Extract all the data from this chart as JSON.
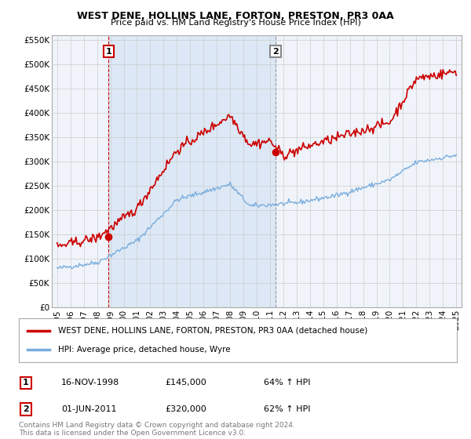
{
  "title": "WEST DENE, HOLLINS LANE, FORTON, PRESTON, PR3 0AA",
  "subtitle": "Price paid vs. HM Land Registry's House Price Index (HPI)",
  "property_label": "WEST DENE, HOLLINS LANE, FORTON, PRESTON, PR3 0AA (detached house)",
  "hpi_label": "HPI: Average price, detached house, Wyre",
  "property_color": "#cc0000",
  "hpi_color": "#7aaddd",
  "sale1_date": "16-NOV-1998",
  "sale1_price": "£145,000",
  "sale1_note": "64% ↑ HPI",
  "sale2_date": "01-JUN-2011",
  "sale2_price": "£320,000",
  "sale2_note": "62% ↑ HPI",
  "sale1_year": 1998.875,
  "sale2_year": 2011.417,
  "sale1_price_val": 145000,
  "sale2_price_val": 320000,
  "ylim": [
    0,
    560000
  ],
  "yticks": [
    0,
    50000,
    100000,
    150000,
    200000,
    250000,
    300000,
    350000,
    400000,
    450000,
    500000,
    550000
  ],
  "footer": "Contains HM Land Registry data © Crown copyright and database right 2024.\nThis data is licensed under the Open Government Licence v3.0.",
  "background_color": "#ffffff",
  "plot_bg_color": "#f0f4fa",
  "shade_color": "#dce8f5",
  "grid_color": "#cccccc"
}
